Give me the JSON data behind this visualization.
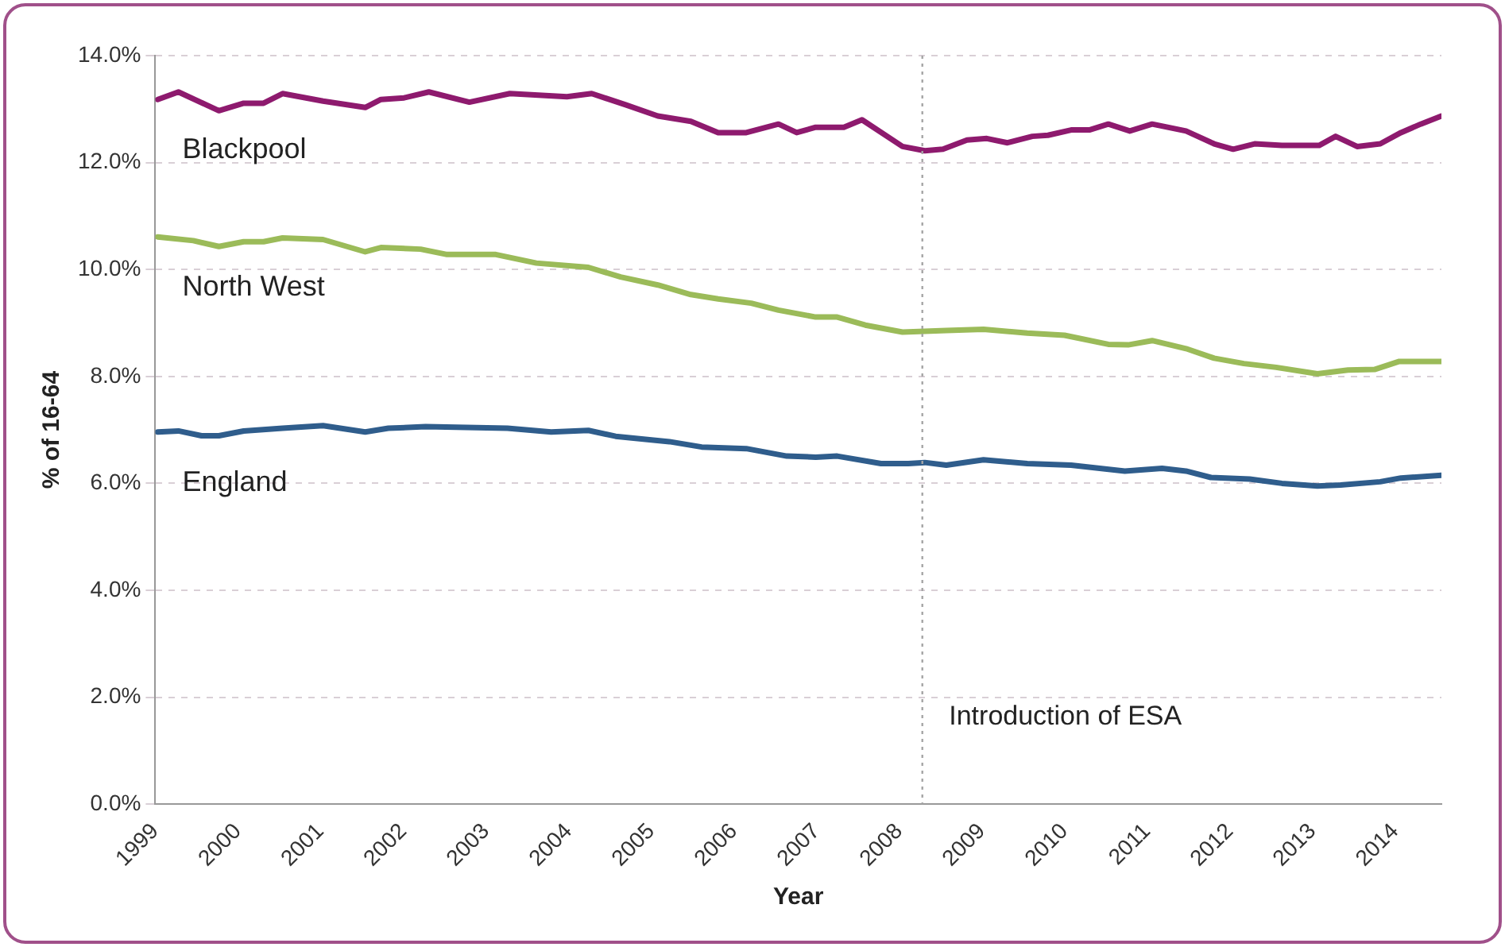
{
  "chart_data": {
    "type": "line",
    "xlabel": "Year",
    "ylabel": "% of 16-64",
    "xlim": [
      1999,
      2014.56
    ],
    "xticks": [
      1999,
      2000,
      2001,
      2002,
      2003,
      2004,
      2005,
      2006,
      2007,
      2008,
      2009,
      2010,
      2011,
      2012,
      2013,
      2014
    ],
    "ylim": [
      0,
      14
    ],
    "yticks": [
      {
        "value": 0,
        "label": "0.0%"
      },
      {
        "value": 2,
        "label": "2.0%"
      },
      {
        "value": 4,
        "label": "4.0%"
      },
      {
        "value": 6,
        "label": "6.0%"
      },
      {
        "value": 8,
        "label": "8.0%"
      },
      {
        "value": 10,
        "label": "10.0%"
      },
      {
        "value": 12,
        "label": "12.0%"
      },
      {
        "value": 14,
        "label": "14.0%"
      }
    ],
    "grid": "y",
    "legend": false,
    "marker": "none",
    "line_style": "solid",
    "series": [
      {
        "name": "Blackpool",
        "color": "#8e1a6e",
        "x": [
          1999.03,
          1999.28,
          1999.77,
          2000.07,
          2000.31,
          2000.54,
          2001.03,
          2001.54,
          2001.73,
          2002.01,
          2002.31,
          2002.8,
          2003.29,
          2003.98,
          2004.28,
          2004.69,
          2005.08,
          2005.48,
          2005.81,
          2006.15,
          2006.54,
          2006.76,
          2006.99,
          2007.33,
          2007.55,
          2008.04,
          2008.31,
          2008.53,
          2008.82,
          2009.06,
          2009.31,
          2009.61,
          2009.8,
          2010.08,
          2010.3,
          2010.53,
          2010.79,
          2011.06,
          2011.47,
          2011.81,
          2012.04,
          2012.3,
          2012.63,
          2013.08,
          2013.28,
          2013.54,
          2013.82,
          2014.07,
          2014.31,
          2014.56
        ],
        "values": [
          13.18,
          13.32,
          12.97,
          13.11,
          13.11,
          13.29,
          13.15,
          13.03,
          13.18,
          13.21,
          13.32,
          13.13,
          13.29,
          13.23,
          13.29,
          13.08,
          12.87,
          12.77,
          12.56,
          12.56,
          12.72,
          12.56,
          12.66,
          12.66,
          12.8,
          12.3,
          12.22,
          12.25,
          12.42,
          12.45,
          12.37,
          12.49,
          12.51,
          12.61,
          12.61,
          12.72,
          12.59,
          12.72,
          12.59,
          12.35,
          12.25,
          12.35,
          12.32,
          12.32,
          12.49,
          12.3,
          12.35,
          12.56,
          12.72,
          12.87
        ]
      },
      {
        "name": "North West",
        "color": "#9bbb59",
        "x": [
          1999.03,
          1999.46,
          1999.77,
          2000.07,
          2000.31,
          2000.54,
          2001.03,
          2001.54,
          2001.73,
          2002.21,
          2002.53,
          2003.12,
          2003.61,
          2004.24,
          2004.63,
          2005.08,
          2005.48,
          2005.81,
          2006.21,
          2006.54,
          2006.99,
          2007.25,
          2007.59,
          2008.04,
          2008.57,
          2009.02,
          2009.55,
          2010.0,
          2010.53,
          2010.77,
          2011.06,
          2011.47,
          2011.81,
          2012.17,
          2012.56,
          2013.06,
          2013.43,
          2013.75,
          2014.05,
          2014.56
        ],
        "values": [
          10.61,
          10.54,
          10.43,
          10.52,
          10.52,
          10.59,
          10.56,
          10.33,
          10.41,
          10.38,
          10.28,
          10.28,
          10.12,
          10.04,
          9.86,
          9.71,
          9.53,
          9.45,
          9.37,
          9.24,
          9.11,
          9.11,
          8.96,
          8.83,
          8.86,
          8.88,
          8.81,
          8.77,
          8.6,
          8.59,
          8.67,
          8.52,
          8.34,
          8.24,
          8.17,
          8.05,
          8.12,
          8.13,
          8.28,
          8.28
        ]
      },
      {
        "name": "England",
        "color": "#2f5d8c",
        "x": [
          1999.03,
          1999.28,
          1999.56,
          1999.77,
          2000.07,
          2000.54,
          2001.03,
          2001.54,
          2001.82,
          2002.27,
          2003.26,
          2003.79,
          2004.24,
          2004.57,
          2005.22,
          2005.61,
          2006.15,
          2006.64,
          2006.99,
          2007.25,
          2007.78,
          2008.11,
          2008.31,
          2008.57,
          2009.02,
          2009.55,
          2010.08,
          2010.73,
          2011.18,
          2011.47,
          2011.77,
          2012.24,
          2012.63,
          2013.06,
          2013.34,
          2013.82,
          2014.07,
          2014.56
        ],
        "values": [
          6.96,
          6.98,
          6.89,
          6.89,
          6.98,
          7.03,
          7.08,
          6.96,
          7.03,
          7.06,
          7.03,
          6.96,
          6.99,
          6.88,
          6.78,
          6.68,
          6.65,
          6.51,
          6.49,
          6.51,
          6.37,
          6.37,
          6.39,
          6.34,
          6.44,
          6.37,
          6.34,
          6.23,
          6.28,
          6.23,
          6.11,
          6.08,
          6.0,
          5.95,
          5.97,
          6.03,
          6.1,
          6.15
        ]
      }
    ],
    "ref_lines": [
      {
        "axis": "x",
        "value": 2008.28,
        "label": "Introduction of ESA",
        "color": "#a6a6a6",
        "line_style": "dotted"
      }
    ]
  }
}
